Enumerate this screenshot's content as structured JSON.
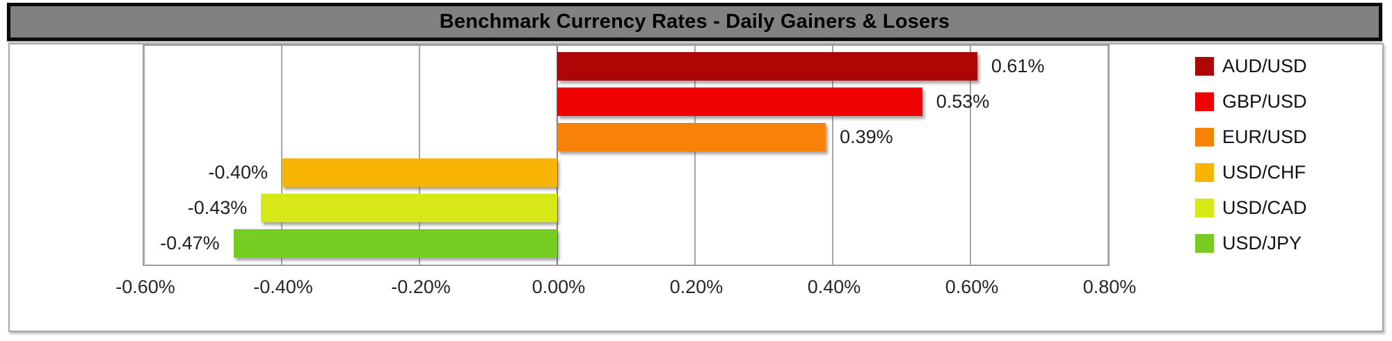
{
  "title": "Benchmark Currency Rates - Daily Gainers & Losers",
  "title_bar": {
    "background": "#818181",
    "border_color": "#0b0b0b",
    "text_color": "#000000"
  },
  "colors": {
    "gridline": "#a5a5a5",
    "zero_line": "#7f7f7f",
    "plot_border": "#9d9d9d",
    "chart_border": "#a6a6a6",
    "label_text": "#1f1f1f"
  },
  "chart_data": {
    "type": "bar",
    "orientation": "horizontal",
    "title": "Benchmark Currency Rates - Daily Gainers & Losers",
    "categories": [
      "AUD/USD",
      "GBP/USD",
      "EUR/USD",
      "USD/CHF",
      "USD/CAD",
      "USD/JPY"
    ],
    "values": [
      0.61,
      0.53,
      0.39,
      -0.4,
      -0.43,
      -0.47
    ],
    "data_labels": [
      "0.61%",
      "0.53%",
      "0.39%",
      "-0.40%",
      "-0.43%",
      "-0.47%"
    ],
    "bar_colors": [
      "#ae0505",
      "#ee0202",
      "#f88108",
      "#fab405",
      "#d7e817",
      "#77cc22"
    ],
    "x_axis": {
      "min": -0.6,
      "max": 0.8,
      "tick_step": 0.2,
      "tick_values": [
        -0.6,
        -0.4,
        -0.2,
        0.0,
        0.2,
        0.4,
        0.6,
        0.8
      ],
      "tick_labels": [
        "-0.60%",
        "-0.40%",
        "-0.20%",
        "0.00%",
        "0.20%",
        "0.40%",
        "0.60%",
        "0.80%"
      ]
    },
    "grid": true,
    "legend_position": "right",
    "legend": [
      {
        "label": "AUD/USD",
        "color": "#ae0505"
      },
      {
        "label": "GBP/USD",
        "color": "#ee0202"
      },
      {
        "label": "EUR/USD",
        "color": "#f88108"
      },
      {
        "label": "USD/CHF",
        "color": "#fab405"
      },
      {
        "label": "USD/CAD",
        "color": "#d7e817"
      },
      {
        "label": "USD/JPY",
        "color": "#77cc22"
      }
    ]
  }
}
